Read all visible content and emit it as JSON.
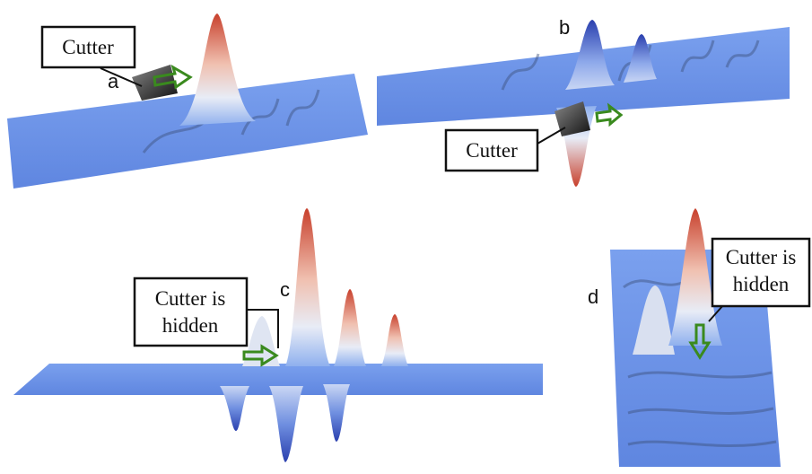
{
  "panels": [
    {
      "label": "a",
      "callout": [
        "Cutter"
      ]
    },
    {
      "label": "b",
      "callout": [
        "Cutter"
      ]
    },
    {
      "label": "c",
      "callout": [
        "Cutter is",
        "hidden"
      ]
    },
    {
      "label": "d",
      "callout": [
        "Cutter is",
        "hidden"
      ]
    }
  ]
}
